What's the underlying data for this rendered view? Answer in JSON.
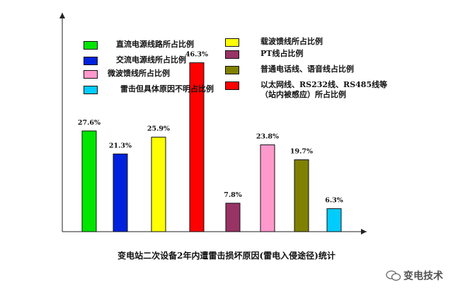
{
  "chart_data": {
    "type": "bar",
    "categories": [
      "直流电源线路所占比例",
      "交流电源线所占比例",
      "载波馈线所占比例",
      "以太网线、RS232线、RS485线等\n（站内被感应）所占比例",
      "PT线占比例",
      "微波馈线所占比例",
      "普通电话线、语音线占比例",
      "雷击但具体原因不明占比例"
    ],
    "values": [
      27.6,
      21.3,
      25.9,
      46.3,
      7.8,
      23.8,
      19.7,
      6.3
    ],
    "value_labels": [
      "27.6%",
      "21.3%",
      "25.9%",
      "46.3%",
      "7.8%",
      "23.8%",
      "19.7%",
      "6.3%"
    ],
    "colors": [
      "#00e600",
      "#0022dd",
      "#ffff00",
      "#ff0000",
      "#993366",
      "#ff99cc",
      "#808000",
      "#00ccff"
    ],
    "ylim": [
      0,
      60
    ],
    "title": "变电站二次设备2年内遭雷击损坏原因(雷电入侵途径)统计",
    "xlabel": "",
    "ylabel": "",
    "grid": false,
    "legend_position": "top"
  },
  "legend": [
    {
      "label": "直流电源线路所占比例",
      "color": "#00e600"
    },
    {
      "label": "交流电源线所占比例",
      "color": "#0022dd"
    },
    {
      "label": "微波馈线所占比例",
      "color": "#ff99cc"
    },
    {
      "label": "雷击但具体原因不明占比例",
      "color": "#00ccff"
    },
    {
      "label": "载波馈线所占比例",
      "color": "#ffff00"
    },
    {
      "label": "PT线占比例",
      "color": "#993366"
    },
    {
      "label": "普通电话线、语音线占比例",
      "color": "#808000"
    },
    {
      "label": "以太网线、RS232线、RS485线等\n（站内被感应）所占比例",
      "color": "#ff0000"
    }
  ],
  "watermark": {
    "text": "变电技术"
  }
}
